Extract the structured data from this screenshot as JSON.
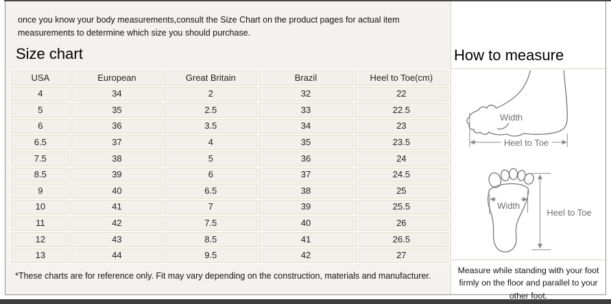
{
  "intro": "once you know your body measurements,consult the Size Chart on the product pages for actual item measurements to determine which size you should purchase.",
  "left": {
    "title": "Size chart",
    "footnote": "*These charts are for reference only. Fit may vary depending on the construction, materials and manufacturer."
  },
  "right": {
    "title": "How to measure",
    "note": "Measure while standing with your foot firmly on the floor and parallel to your other foot.",
    "diagram_labels": {
      "side_width": "Width",
      "side_heel_to_toe": "Heel to Toe",
      "sole_width": "Width",
      "sole_heel_to_toe": "Heel to Toe"
    }
  },
  "chart_data": {
    "type": "table",
    "columns": [
      "USA",
      "European",
      "Great Britain",
      "Brazil",
      "Heel to Toe(cm)"
    ],
    "rows": [
      [
        "4",
        "34",
        "2",
        "32",
        "22"
      ],
      [
        "5",
        "35",
        "2.5",
        "33",
        "22.5"
      ],
      [
        "6",
        "36",
        "3.5",
        "34",
        "23"
      ],
      [
        "6.5",
        "37",
        "4",
        "35",
        "23.5"
      ],
      [
        "7.5",
        "38",
        "5",
        "36",
        "24"
      ],
      [
        "8.5",
        "39",
        "6",
        "37",
        "24.5"
      ],
      [
        "9",
        "40",
        "6.5",
        "38",
        "25"
      ],
      [
        "10",
        "41",
        "7",
        "39",
        "25.5"
      ],
      [
        "11",
        "42",
        "7.5",
        "40",
        "26"
      ],
      [
        "12",
        "43",
        "8.5",
        "41",
        "26.5"
      ],
      [
        "13",
        "44",
        "9.5",
        "42",
        "27"
      ]
    ]
  },
  "colors": {
    "panel_bg": "#f3f2ee",
    "cell_bg": "#f1f0ea",
    "cell_border": "#e2dfd2",
    "frame_border": "#8f8f8f",
    "bottom_bar": "#3d3d3d",
    "diagram_stroke": "#757575"
  }
}
